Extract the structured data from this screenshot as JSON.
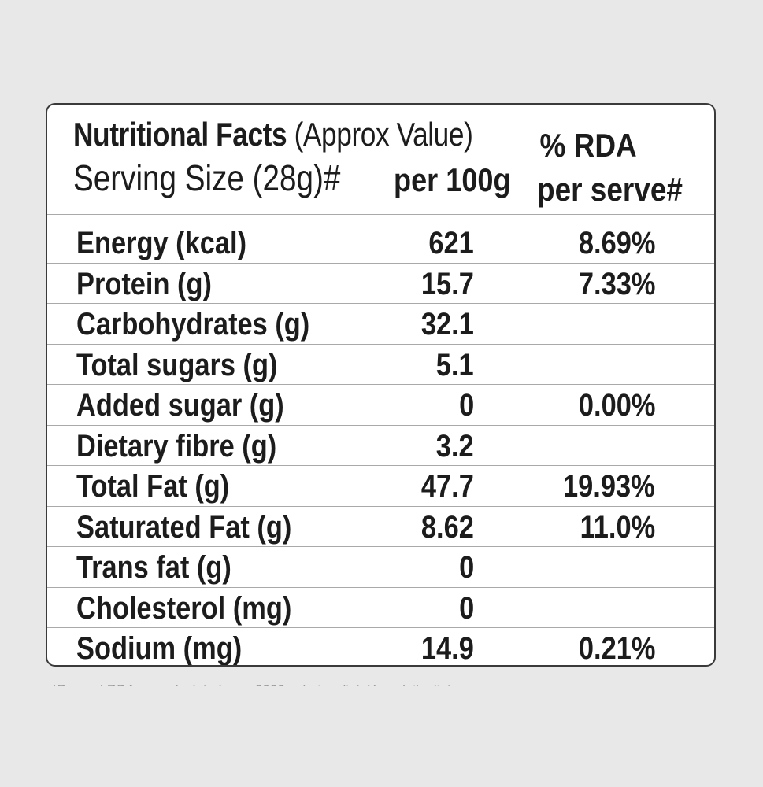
{
  "header": {
    "title_bold": "Nutritional Facts",
    "title_normal": "(Approx Value)",
    "serving_size": "Serving Size (28g)#",
    "per_100g": "per 100g",
    "rda_line1": "% RDA",
    "rda_line2": "per serve#"
  },
  "rows": [
    {
      "name": "Energy (kcal)",
      "per100": "621",
      "rda": "8.69%"
    },
    {
      "name": "Protein (g)",
      "per100": "15.7",
      "rda": "7.33%"
    },
    {
      "name": "Carbohydrates (g)",
      "per100": "32.1",
      "rda": ""
    },
    {
      "name": "Total sugars (g)",
      "per100": "5.1",
      "rda": ""
    },
    {
      "name": "Added sugar (g)",
      "per100": "0",
      "rda": "0.00%"
    },
    {
      "name": "Dietary fibre (g)",
      "per100": "3.2",
      "rda": ""
    },
    {
      "name": "Total Fat (g)",
      "per100": "47.7",
      "rda": "19.93%"
    },
    {
      "name": "Saturated Fat (g)",
      "per100": "8.62",
      "rda": "11.0%"
    },
    {
      "name": "Trans fat (g)",
      "per100": "0",
      "rda": ""
    },
    {
      "name": "Cholesterol (mg)",
      "per100": "0",
      "rda": ""
    },
    {
      "name": "Sodium (mg)",
      "per100": "14.9",
      "rda": "0.21%"
    }
  ],
  "footnote": "*Percent RDA are calculated on a 2000 calories diet. Your daily diet"
}
